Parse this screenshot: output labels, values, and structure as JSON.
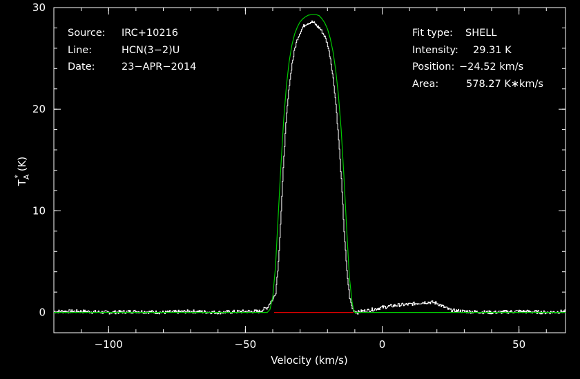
{
  "chart_data": {
    "type": "line",
    "xlabel": "Velocity (km/s)",
    "ylabel": "T",
    "ylabel_sup": "*",
    "ylabel_sub": "A",
    "ylabel_unit": " (K)",
    "xlim": [
      -120,
      67
    ],
    "ylim": [
      -2,
      30
    ],
    "xticks": [
      -100,
      -50,
      0,
      50
    ],
    "xtick_labels": [
      "−100",
      "−50",
      "0",
      "50"
    ],
    "yticks": [
      0,
      10,
      20,
      30
    ],
    "ytick_labels": [
      "0",
      "10",
      "20",
      "30"
    ],
    "xminor_step": 10,
    "yminor_step": 2,
    "colors": {
      "background": "#000000",
      "axes": "#ffffff",
      "data": "#ffffff",
      "fit": "#00cc00",
      "baseline": "#dd0000"
    },
    "series": [
      {
        "kind": "observed-spectrum",
        "color": "#ffffff",
        "x": [
          -120,
          -110,
          -100,
          -90,
          -80,
          -70,
          -60,
          -50,
          -45,
          -42,
          -41,
          -40,
          -39,
          -38,
          -37,
          -36,
          -35,
          -34,
          -33,
          -32,
          -31,
          -30,
          -29,
          -28,
          -27,
          -26,
          -25,
          -24,
          -23,
          -22,
          -21,
          -20,
          -19,
          -18,
          -17,
          -16,
          -15,
          -14,
          -13,
          -12,
          -11,
          -10,
          -9,
          -8,
          -5,
          0,
          5,
          10,
          15,
          18,
          20,
          22,
          25,
          30,
          40,
          50,
          60,
          67
        ],
        "y": [
          0.1,
          0.1,
          0.0,
          0.1,
          0.0,
          0.1,
          0.0,
          0.1,
          0.1,
          0.5,
          1.0,
          1.3,
          2.0,
          5.0,
          10.0,
          15.5,
          19.5,
          22.5,
          24.5,
          26.0,
          27.0,
          27.6,
          28.1,
          28.4,
          28.5,
          28.6,
          28.5,
          28.2,
          28.0,
          27.6,
          27.1,
          26.3,
          25.0,
          23.0,
          20.5,
          17.0,
          13.0,
          8.0,
          4.0,
          1.5,
          0.4,
          0.1,
          0.0,
          0.1,
          0.2,
          0.5,
          0.7,
          0.8,
          1.0,
          1.0,
          0.9,
          0.6,
          0.2,
          0.1,
          0.0,
          0.1,
          0.0,
          0.1
        ]
      },
      {
        "kind": "shell-fit",
        "color": "#00cc00",
        "x": [
          -120,
          -45,
          -42,
          -41,
          -40,
          -39,
          -38,
          -37,
          -36,
          -35,
          -34,
          -33,
          -32,
          -31,
          -30,
          -29,
          -28,
          -27,
          -26,
          -25,
          -24.5,
          -24,
          -23,
          -22,
          -21,
          -20,
          -19,
          -18,
          -17,
          -16,
          -15,
          -14,
          -13,
          -12,
          -11,
          -10.5,
          -10,
          67
        ],
        "y": [
          0,
          0,
          0,
          0.3,
          1.5,
          4.5,
          9.5,
          14.5,
          19.0,
          22.3,
          24.7,
          26.3,
          27.4,
          28.1,
          28.6,
          28.9,
          29.1,
          29.25,
          29.3,
          29.31,
          29.31,
          29.3,
          29.2,
          28.9,
          28.5,
          27.9,
          27.0,
          25.7,
          23.9,
          21.4,
          18.0,
          13.5,
          8.3,
          3.5,
          1.0,
          0.3,
          0,
          0
        ]
      },
      {
        "kind": "baseline",
        "color": "#dd0000",
        "x": [
          -39.5,
          -10.5
        ],
        "y": [
          0,
          0
        ]
      }
    ]
  },
  "info_left": [
    {
      "label": "Source:",
      "value": "IRC+10216"
    },
    {
      "label": "Line:",
      "value": "HCN(3−2)U"
    },
    {
      "label": "Date:",
      "value": "23−APR−2014"
    }
  ],
  "info_right": [
    {
      "label": "Fit type:",
      "value": "SHELL"
    },
    {
      "label": "Intensity:",
      "value": "29.31 K"
    },
    {
      "label": "Position:",
      "value": "−24.52 km/s"
    },
    {
      "label": "Area:",
      "value": "578.27 K∗km/s"
    }
  ]
}
